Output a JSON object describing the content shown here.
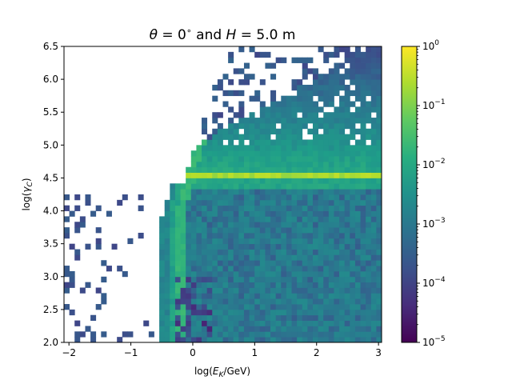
{
  "chart_data": {
    "type": "heatmap",
    "title": {
      "theta_symbol": "θ",
      "theta_value": " = 0",
      "degree": "∘",
      "and": " and ",
      "h_symbol": "H",
      "h_value": " = 5.0 m"
    },
    "xlabel": {
      "prefix": "log(",
      "var": "E",
      "sub": "K",
      "suffix": "/GeV)"
    },
    "ylabel": {
      "prefix": "log(",
      "var": "γ",
      "sub": "C",
      "suffix": ")"
    },
    "xlim": [
      -2.08,
      3.05
    ],
    "ylim": [
      2.0,
      6.5
    ],
    "x_ticks": [
      -2,
      -1,
      0,
      1,
      2,
      3
    ],
    "x_tick_labels": [
      "−2",
      "−1",
      "0",
      "1",
      "2",
      "3"
    ],
    "y_ticks": [
      2.0,
      2.5,
      3.0,
      3.5,
      4.0,
      4.5,
      5.0,
      5.5,
      6.0,
      6.5
    ],
    "y_tick_labels": [
      "2.0",
      "2.5",
      "3.0",
      "3.5",
      "4.0",
      "4.5",
      "5.0",
      "5.5",
      "6.0",
      "6.5"
    ],
    "color_scale": "log",
    "colormap": "viridis",
    "colorbar": {
      "range": [
        1e-05,
        1
      ],
      "ticks": [
        {
          "value": 1e-05,
          "base": "10",
          "exp": "−5"
        },
        {
          "value": 0.0001,
          "base": "10",
          "exp": "−4"
        },
        {
          "value": 0.001,
          "base": "10",
          "exp": "−3"
        },
        {
          "value": 0.01,
          "base": "10",
          "exp": "−2"
        },
        {
          "value": 0.1,
          "base": "10",
          "exp": "−1"
        },
        {
          "value": 1,
          "base": "10",
          "exp": "0"
        }
      ]
    },
    "bins": {
      "x_min": -2.08,
      "x_max": 3.05,
      "x_count": 60,
      "y_min": 2.0,
      "y_max": 6.5,
      "y_count": 54
    },
    "features": {
      "turn_on_logE": -0.3,
      "ridge_logGamma": 4.52,
      "ridge_level": 0.25,
      "band_level": 0.01,
      "scattered_floor_level": 0.0005,
      "sparse_level": 0.0001
    }
  }
}
